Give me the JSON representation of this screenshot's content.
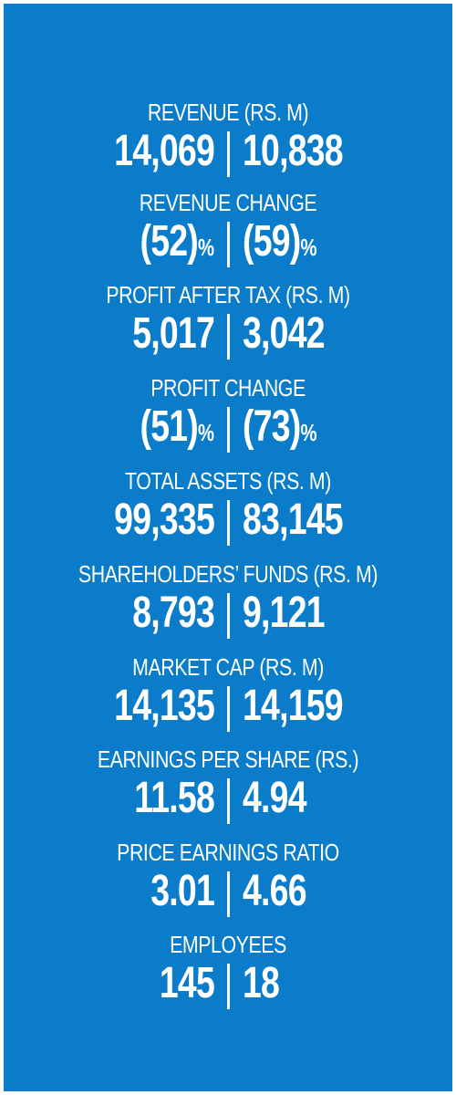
{
  "stats": [
    {
      "label": "REVENUE (RS. M)",
      "left": "14,069",
      "right": "10,838",
      "left_suffix": "",
      "right_suffix": ""
    },
    {
      "label": "REVENUE CHANGE",
      "left": "(52)",
      "right": "(59)",
      "left_suffix": "%",
      "right_suffix": "%"
    },
    {
      "label": "PROFIT AFTER TAX (RS. M)",
      "left": "5,017",
      "right": "3,042",
      "left_suffix": "",
      "right_suffix": ""
    },
    {
      "label": "PROFIT CHANGE",
      "left": "(51)",
      "right": "(73)",
      "left_suffix": "%",
      "right_suffix": "%"
    },
    {
      "label": "TOTAL ASSETS (RS. M)",
      "left": "99,335",
      "right": "83,145",
      "left_suffix": "",
      "right_suffix": ""
    },
    {
      "label": "SHAREHOLDERS’ FUNDS (RS. M)",
      "left": "8,793",
      "right": "9,121",
      "left_suffix": "",
      "right_suffix": ""
    },
    {
      "label": "MARKET CAP (RS. M)",
      "left": "14,135",
      "right": "14,159",
      "left_suffix": "",
      "right_suffix": ""
    },
    {
      "label": "EARNINGS PER SHARE (RS.)",
      "left": "11.58",
      "right": "4.94",
      "left_suffix": "",
      "right_suffix": ""
    },
    {
      "label": "PRICE EARNINGS RATIO",
      "left": "3.01",
      "right": "4.66",
      "left_suffix": "",
      "right_suffix": ""
    },
    {
      "label": "EMPLOYEES",
      "left": "145",
      "right": "18",
      "left_suffix": "",
      "right_suffix": ""
    }
  ],
  "colors": {
    "background": "#0a7cc9",
    "text": "#ffffff"
  }
}
